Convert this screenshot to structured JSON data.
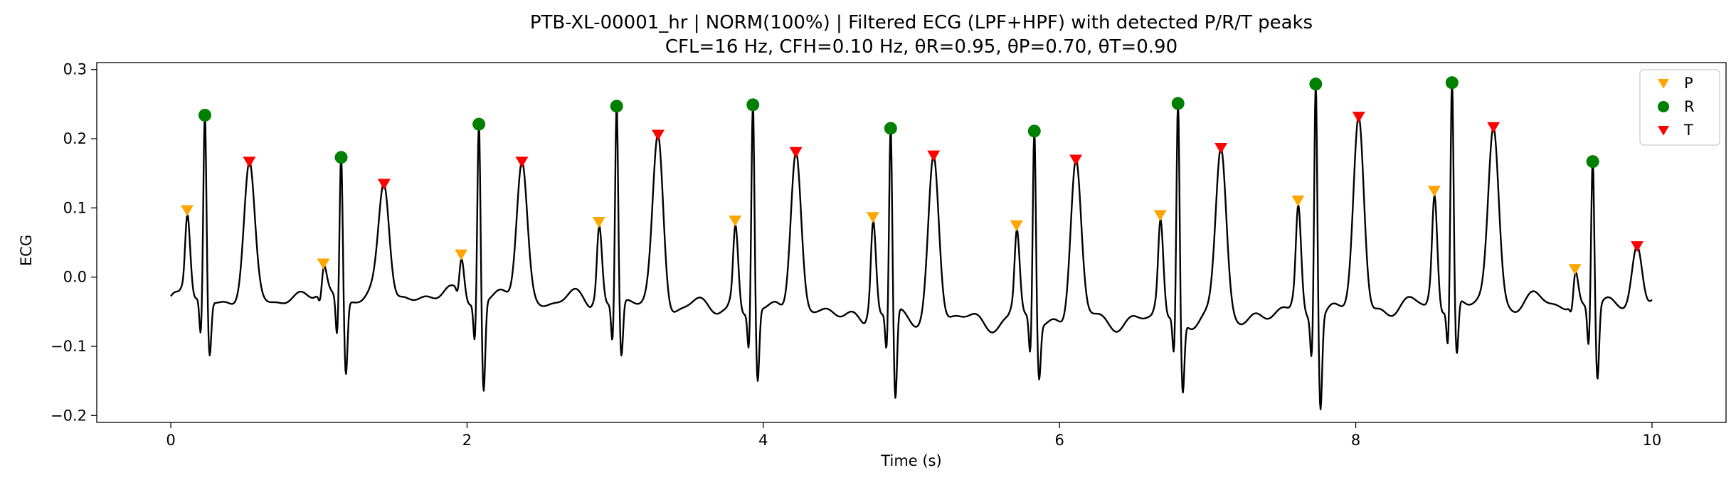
{
  "chart_data": {
    "type": "line",
    "title": "PTB-XL-00001_hr | NORM(100%) | Filtered ECG (LPF+HPF) with detected P/R/T peaks",
    "subtitle": "CFL=16 Hz, CFH=0.10 Hz, θR=0.95, θP=0.70, θT=0.90",
    "xlabel": "Time (s)",
    "ylabel": "ECG",
    "xlim": [
      -0.5,
      10.5
    ],
    "ylim": [
      -0.21,
      0.31
    ],
    "xticks": [
      0,
      2,
      4,
      6,
      8,
      10
    ],
    "yticks": [
      -0.2,
      -0.1,
      0.0,
      0.1,
      0.2,
      0.3
    ],
    "xtick_labels": [
      "0",
      "2",
      "4",
      "6",
      "8",
      "10"
    ],
    "ytick_labels": [
      "−0.2",
      "−0.1",
      "0.0",
      "0.1",
      "0.2",
      "0.3"
    ],
    "grid": false,
    "legend_position": "top-right",
    "ecg_beats": [
      0.11,
      0.23,
      0.53,
      1.03,
      1.15,
      1.44,
      1.96,
      2.08,
      2.37,
      2.89,
      3.01,
      3.29,
      3.81,
      3.93,
      4.22,
      4.74,
      4.86,
      5.15,
      5.71,
      5.83,
      6.11,
      6.68,
      6.8,
      7.09,
      7.61,
      7.73,
      8.02,
      8.53,
      8.65,
      8.93,
      9.48,
      9.6,
      9.9
    ],
    "series": [
      {
        "name": "P",
        "marker": "triangle-down",
        "color": "#FFA500",
        "x": [
          0.11,
          1.03,
          1.96,
          2.89,
          3.81,
          4.74,
          5.71,
          6.68,
          7.61,
          8.53,
          9.48
        ],
        "y": [
          0.097,
          0.02,
          0.033,
          0.08,
          0.082,
          0.087,
          0.075,
          0.09,
          0.111,
          0.125,
          0.012
        ]
      },
      {
        "name": "R",
        "marker": "circle",
        "color": "#008000",
        "x": [
          0.23,
          1.15,
          2.08,
          3.01,
          3.93,
          4.86,
          5.83,
          6.8,
          7.73,
          8.65,
          9.6
        ],
        "y": [
          0.234,
          0.173,
          0.221,
          0.247,
          0.249,
          0.215,
          0.211,
          0.251,
          0.279,
          0.281,
          0.167
        ]
      },
      {
        "name": "T",
        "marker": "triangle-down",
        "color": "#FF0000",
        "x": [
          0.53,
          1.44,
          2.37,
          3.29,
          4.22,
          5.15,
          6.11,
          7.09,
          8.02,
          8.93,
          9.9
        ],
        "y": [
          0.167,
          0.135,
          0.167,
          0.206,
          0.181,
          0.176,
          0.17,
          0.187,
          0.232,
          0.217,
          0.045
        ]
      }
    ],
    "line_color": "#000000"
  }
}
